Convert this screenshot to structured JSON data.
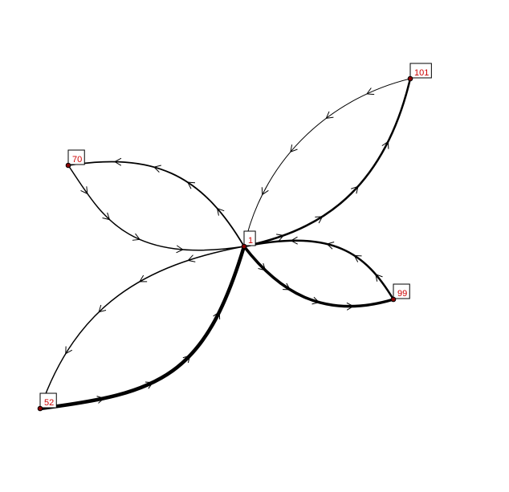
{
  "nodes": [
    {
      "id": "1",
      "label": "1"
    },
    {
      "id": "52",
      "label": "52"
    },
    {
      "id": "70",
      "label": "70"
    },
    {
      "id": "99",
      "label": "99"
    },
    {
      "id": "101",
      "label": "101"
    }
  ],
  "edges": [
    {
      "from": "1",
      "to": "101",
      "weight": 2.5
    },
    {
      "from": "101",
      "to": "1",
      "weight": 1
    },
    {
      "from": "1",
      "to": "70",
      "weight": 1.8
    },
    {
      "from": "70",
      "to": "1",
      "weight": 1.5
    },
    {
      "from": "1",
      "to": "99",
      "weight": 3.5
    },
    {
      "from": "99",
      "to": "1",
      "weight": 2.5
    },
    {
      "from": "52",
      "to": "1",
      "weight": 4.5
    },
    {
      "from": "1",
      "to": "52",
      "weight": 1.5
    }
  ],
  "colors": {
    "edge": "#000000",
    "node_fill": "#8b0000",
    "label_text": "#cc0000",
    "label_box": "#ffffff"
  }
}
